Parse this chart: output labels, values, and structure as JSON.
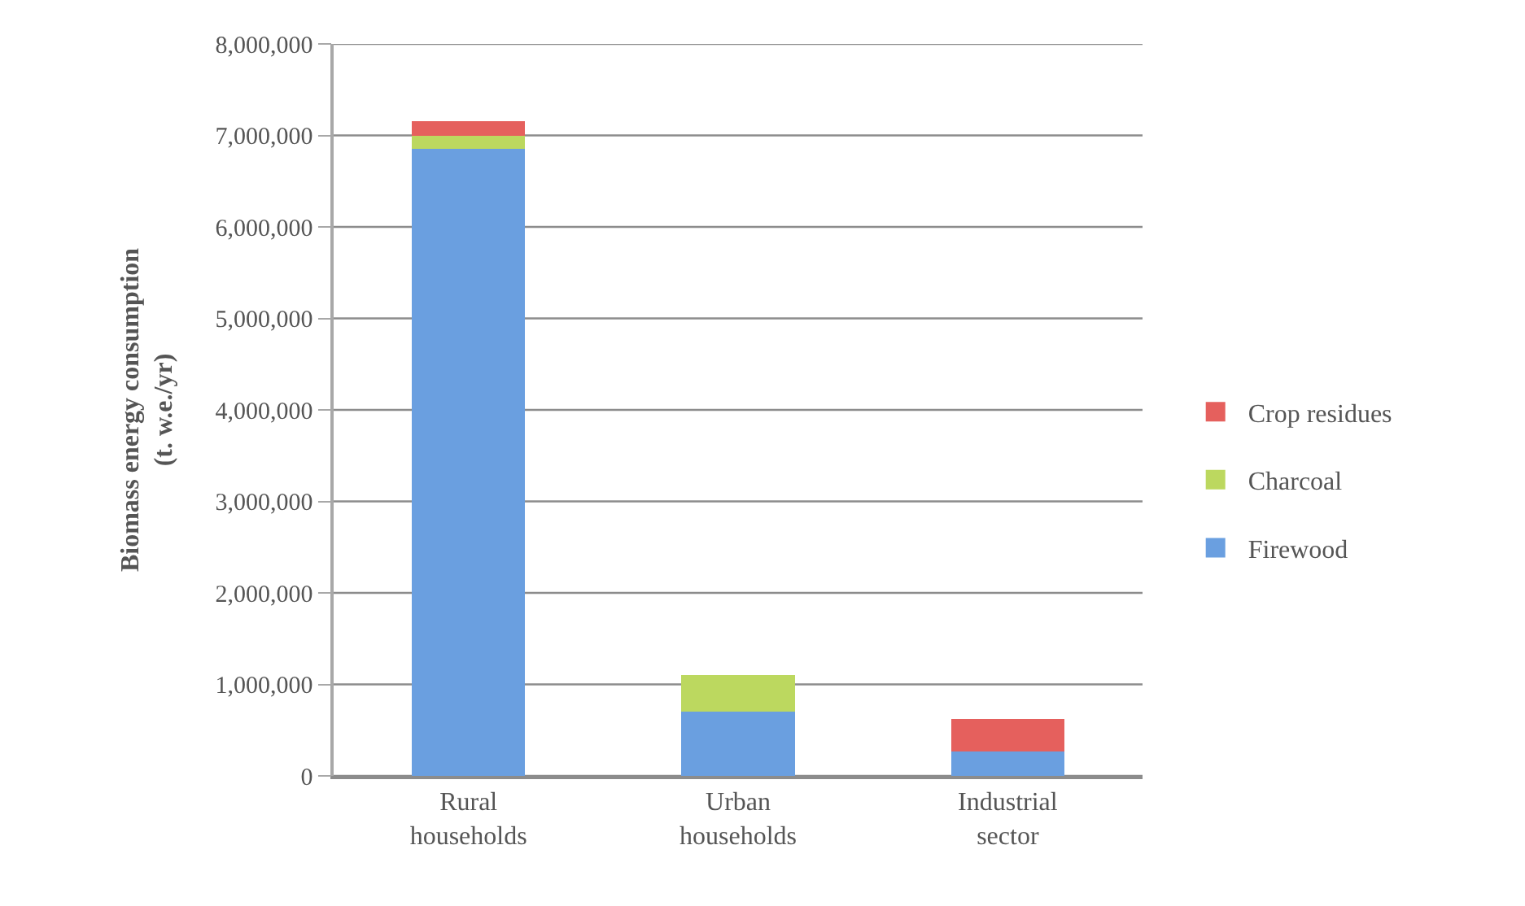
{
  "chart_data": {
    "type": "bar",
    "stacked": true,
    "ylabel": "Biomass energy consumption\n(t. w.e./yr)",
    "categories": [
      "Rural households",
      "Urban households",
      "Industrial sector"
    ],
    "series": [
      {
        "name": "Firewood",
        "color": "#6a9fe0",
        "values": [
          6850000,
          700000,
          270000
        ]
      },
      {
        "name": "Charcoal",
        "color": "#bcd85f",
        "values": [
          150000,
          400000,
          0
        ]
      },
      {
        "name": "Crop residues",
        "color": "#e5605d",
        "values": [
          160000,
          0,
          350000
        ]
      }
    ],
    "ylim": [
      0,
      8000000
    ],
    "yticks": [
      0,
      {
        "value": 1000000,
        "label": "1,000,000"
      },
      {
        "value": 2000000,
        "label": "2,000,000"
      },
      {
        "value": 3000000,
        "label": "3,000,000"
      },
      {
        "value": 4000000,
        "label": "4,000,000"
      },
      {
        "value": 5000000,
        "label": "5,000,000"
      },
      {
        "value": 6000000,
        "label": "6,000,000"
      },
      {
        "value": 7000000,
        "label": "7,000,000"
      },
      {
        "value": 8000000,
        "label": "8,000,000"
      }
    ],
    "grid": "y",
    "legend": "right"
  }
}
